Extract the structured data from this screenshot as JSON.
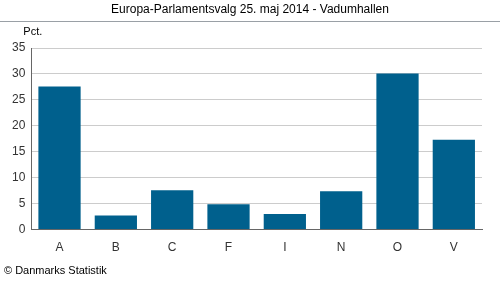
{
  "chart_data": {
    "type": "bar",
    "title": "Europa-Parlamentsvalg 25. maj 2014 - Vadumhallen",
    "ylabel": "Pct.",
    "source": "© Danmarks Statistik",
    "categories": [
      "A",
      "B",
      "C",
      "F",
      "I",
      "N",
      "O",
      "V"
    ],
    "values": [
      27.6,
      2.7,
      7.6,
      4.9,
      3.0,
      7.4,
      30.1,
      17.3
    ],
    "color": "#00608d",
    "ylim": [
      0,
      35
    ],
    "yticks": [
      0,
      5,
      10,
      15,
      20,
      25,
      30,
      35
    ],
    "grid": true
  }
}
